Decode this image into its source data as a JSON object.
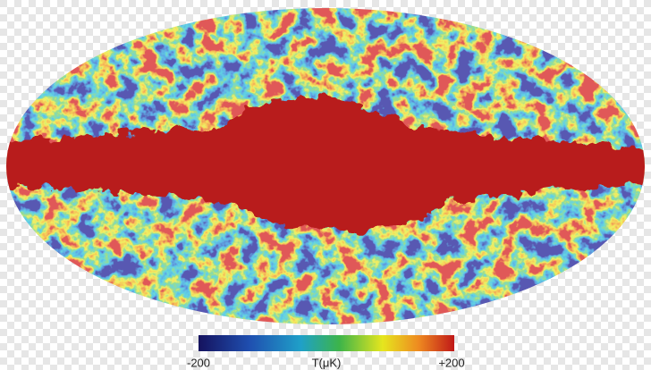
{
  "colorbar": {
    "min_label": "-200",
    "axis_label": "T(μK)",
    "max_label": "+200"
  }
}
